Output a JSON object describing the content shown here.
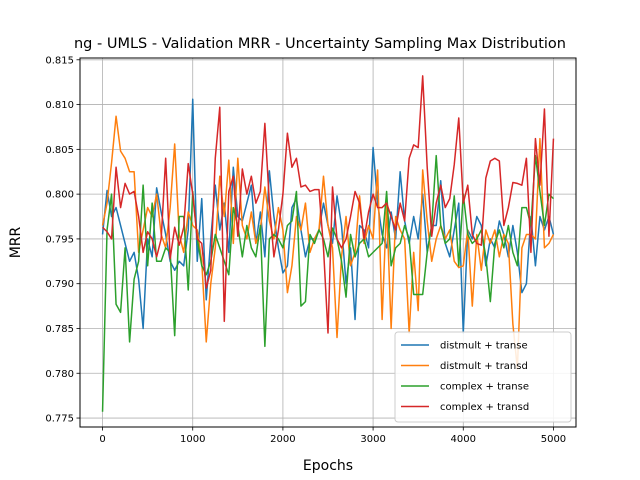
{
  "chart_data": {
    "type": "line",
    "title": "ng - UMLS - Validation MRR - Uncertainty Sampling Max Distribution",
    "xlabel": "Epochs",
    "ylabel": "MRR",
    "xlim": [
      -250,
      5250
    ],
    "ylim": [
      0.774,
      0.8152
    ],
    "xticks": [
      0,
      1000,
      2000,
      3000,
      4000,
      5000
    ],
    "xtick_labels": [
      "0",
      "1000",
      "2000",
      "3000",
      "4000",
      "5000"
    ],
    "yticks": [
      0.775,
      0.78,
      0.785,
      0.79,
      0.795,
      0.8,
      0.805,
      0.81,
      0.815
    ],
    "ytick_labels": [
      "0.775",
      "0.780",
      "0.785",
      "0.790",
      "0.795",
      "0.800",
      "0.805",
      "0.810",
      "0.815"
    ],
    "grid": true,
    "legend_position": "lower-right",
    "series": [
      {
        "name": "distmult + transe",
        "color": "#1f77b4",
        "x": [
          0,
          50,
          100,
          150,
          200,
          250,
          300,
          350,
          400,
          450,
          500,
          550,
          600,
          650,
          700,
          750,
          800,
          850,
          900,
          950,
          1000,
          1050,
          1100,
          1150,
          1200,
          1250,
          1300,
          1350,
          1400,
          1450,
          1500,
          1550,
          1600,
          1650,
          1700,
          1750,
          1800,
          1850,
          1900,
          1950,
          2000,
          2050,
          2100,
          2150,
          2200,
          2250,
          2300,
          2350,
          2400,
          2450,
          2500,
          2550,
          2600,
          2650,
          2700,
          2750,
          2800,
          2850,
          2900,
          2950,
          3000,
          3050,
          3100,
          3150,
          3200,
          3250,
          3300,
          3350,
          3400,
          3450,
          3500,
          3550,
          3600,
          3650,
          3700,
          3750,
          3800,
          3850,
          3900,
          3950,
          4000,
          4050,
          4100,
          4150,
          4200,
          4250,
          4300,
          4350,
          4400,
          4450,
          4500,
          4550,
          4600,
          4650,
          4700,
          4750,
          4800,
          4850,
          4900,
          4950,
          5000
        ],
        "y": [
          0.7955,
          0.8004,
          0.7975,
          0.7985,
          0.7965,
          0.7945,
          0.7925,
          0.7935,
          0.7905,
          0.785,
          0.795,
          0.793,
          0.8007,
          0.798,
          0.7955,
          0.7925,
          0.7915,
          0.7925,
          0.792,
          0.796,
          0.8106,
          0.7925,
          0.7995,
          0.7882,
          0.795,
          0.801,
          0.796,
          0.799,
          0.7935,
          0.803,
          0.7975,
          0.797,
          0.799,
          0.801,
          0.7945,
          0.798,
          0.793,
          0.8026,
          0.7975,
          0.794,
          0.7912,
          0.792,
          0.7985,
          0.7995,
          0.796,
          0.793,
          0.795,
          0.795,
          0.796,
          0.799,
          0.7965,
          0.7945,
          0.7998,
          0.7965,
          0.79,
          0.794,
          0.786,
          0.7965,
          0.796,
          0.794,
          0.8052,
          0.799,
          0.7955,
          0.794,
          0.798,
          0.795,
          0.8025,
          0.797,
          0.7945,
          0.7975,
          0.795,
          0.8,
          0.7935,
          0.7965,
          0.7965,
          0.8015,
          0.7945,
          0.793,
          0.796,
          0.799,
          0.7845,
          0.796,
          0.795,
          0.7975,
          0.7965,
          0.792,
          0.795,
          0.794,
          0.797,
          0.7955,
          0.793,
          0.7965,
          0.7935,
          0.789,
          0.79,
          0.7975,
          0.792,
          0.7975,
          0.796,
          0.7975,
          0.7955
        ]
      },
      {
        "name": "distmult + transd",
        "color": "#ff7f0e",
        "x": [
          0,
          50,
          100,
          150,
          200,
          250,
          300,
          350,
          400,
          450,
          500,
          550,
          600,
          650,
          700,
          750,
          800,
          850,
          900,
          950,
          1000,
          1050,
          1100,
          1150,
          1200,
          1250,
          1300,
          1350,
          1400,
          1450,
          1500,
          1550,
          1600,
          1650,
          1700,
          1750,
          1800,
          1850,
          1900,
          1950,
          2000,
          2050,
          2100,
          2150,
          2200,
          2250,
          2300,
          2350,
          2400,
          2450,
          2500,
          2550,
          2600,
          2650,
          2700,
          2750,
          2800,
          2850,
          2900,
          2950,
          3000,
          3050,
          3100,
          3150,
          3200,
          3250,
          3300,
          3350,
          3400,
          3450,
          3500,
          3550,
          3600,
          3650,
          3700,
          3750,
          3800,
          3850,
          3900,
          3950,
          4000,
          4050,
          4100,
          4150,
          4200,
          4250,
          4300,
          4350,
          4400,
          4450,
          4500,
          4550,
          4600,
          4650,
          4700,
          4750,
          4800,
          4850,
          4900,
          4950,
          5000
        ],
        "y": [
          0.7965,
          0.799,
          0.8035,
          0.8087,
          0.8048,
          0.804,
          0.8025,
          0.8025,
          0.7935,
          0.796,
          0.7985,
          0.7975,
          0.8,
          0.7955,
          0.794,
          0.7985,
          0.8056,
          0.7955,
          0.7935,
          0.798,
          0.7965,
          0.796,
          0.7925,
          0.7835,
          0.79,
          0.794,
          0.802,
          0.7975,
          0.8038,
          0.7945,
          0.804,
          0.7965,
          0.795,
          0.798,
          0.7945,
          0.796,
          0.8008,
          0.797,
          0.795,
          0.7985,
          0.796,
          0.789,
          0.792,
          0.7975,
          0.796,
          0.799,
          0.7935,
          0.795,
          0.796,
          0.802,
          0.7965,
          0.794,
          0.784,
          0.793,
          0.7975,
          0.792,
          0.7935,
          0.7998,
          0.7945,
          0.7965,
          0.795,
          0.8027,
          0.786,
          0.7988,
          0.785,
          0.7975,
          0.796,
          0.795,
          0.7845,
          0.7935,
          0.787,
          0.8027,
          0.797,
          0.7925,
          0.795,
          0.7965,
          0.795,
          0.796,
          0.7925,
          0.7918,
          0.792,
          0.796,
          0.7875,
          0.7955,
          0.7915,
          0.796,
          0.7945,
          0.796,
          0.793,
          0.7955,
          0.7945,
          0.7855,
          0.7805,
          0.794,
          0.7955,
          0.7955,
          0.795,
          0.8062,
          0.794,
          0.7945,
          0.7955
        ]
      },
      {
        "name": "complex + transe",
        "color": "#2ca02c",
        "x": [
          0,
          50,
          100,
          150,
          200,
          250,
          300,
          350,
          400,
          450,
          500,
          550,
          600,
          650,
          700,
          750,
          800,
          850,
          900,
          950,
          1000,
          1050,
          1100,
          1150,
          1200,
          1250,
          1300,
          1350,
          1400,
          1450,
          1500,
          1550,
          1600,
          1650,
          1700,
          1750,
          1800,
          1850,
          1900,
          1950,
          2000,
          2050,
          2100,
          2150,
          2200,
          2250,
          2300,
          2350,
          2400,
          2450,
          2500,
          2550,
          2600,
          2650,
          2700,
          2750,
          2800,
          2850,
          2900,
          2950,
          3000,
          3050,
          3100,
          3150,
          3200,
          3250,
          3300,
          3350,
          3400,
          3450,
          3500,
          3550,
          3600,
          3650,
          3700,
          3750,
          3800,
          3850,
          3900,
          3950,
          4000,
          4050,
          4100,
          4150,
          4200,
          4250,
          4300,
          4350,
          4400,
          4450,
          4500,
          4550,
          4600,
          4650,
          4700,
          4750,
          4800,
          4850,
          4900,
          4950,
          5000
        ],
        "y": [
          0.7757,
          0.796,
          0.8,
          0.7877,
          0.7868,
          0.794,
          0.7835,
          0.7905,
          0.7925,
          0.801,
          0.792,
          0.799,
          0.7925,
          0.7925,
          0.794,
          0.7935,
          0.7842,
          0.7975,
          0.7975,
          0.7893,
          0.8003,
          0.795,
          0.792,
          0.791,
          0.7925,
          0.7955,
          0.794,
          0.7925,
          0.791,
          0.7985,
          0.7965,
          0.793,
          0.7965,
          0.794,
          0.793,
          0.7965,
          0.783,
          0.795,
          0.7955,
          0.795,
          0.794,
          0.7965,
          0.797,
          0.8003,
          0.7875,
          0.788,
          0.7955,
          0.7945,
          0.796,
          0.795,
          0.793,
          0.7962,
          0.795,
          0.7925,
          0.7885,
          0.7955,
          0.793,
          0.7945,
          0.795,
          0.793,
          0.7935,
          0.794,
          0.7945,
          0.8003,
          0.792,
          0.794,
          0.7945,
          0.7965,
          0.795,
          0.7888,
          0.7888,
          0.7888,
          0.7935,
          0.7965,
          0.8043,
          0.7965,
          0.7945,
          0.795,
          0.7998,
          0.792,
          0.8,
          0.7955,
          0.7945,
          0.795,
          0.796,
          0.793,
          0.788,
          0.7945,
          0.796,
          0.794,
          0.7965,
          0.7935,
          0.792,
          0.7985,
          0.7985,
          0.7965,
          0.8043,
          0.8003,
          0.7965,
          0.8,
          0.7995
        ]
      },
      {
        "name": "complex + transd",
        "color": "#d62728",
        "x": [
          0,
          50,
          100,
          150,
          200,
          250,
          300,
          350,
          400,
          450,
          500,
          550,
          600,
          650,
          700,
          750,
          800,
          850,
          900,
          950,
          1000,
          1050,
          1100,
          1150,
          1200,
          1250,
          1300,
          1350,
          1400,
          1450,
          1500,
          1550,
          1600,
          1650,
          1700,
          1750,
          1800,
          1850,
          1900,
          1950,
          2000,
          2050,
          2100,
          2150,
          2200,
          2250,
          2300,
          2350,
          2400,
          2450,
          2500,
          2550,
          2600,
          2650,
          2700,
          2750,
          2800,
          2850,
          2900,
          2950,
          3000,
          3050,
          3100,
          3150,
          3200,
          3250,
          3300,
          3350,
          3400,
          3450,
          3500,
          3550,
          3600,
          3650,
          3700,
          3750,
          3800,
          3850,
          3900,
          3950,
          4000,
          4050,
          4100,
          4150,
          4200,
          4250,
          4300,
          4350,
          4400,
          4450,
          4500,
          4550,
          4600,
          4650,
          4700,
          4750,
          4800,
          4850,
          4900,
          4950,
          5000
        ],
        "y": [
          0.7963,
          0.7958,
          0.795,
          0.803,
          0.7985,
          0.8012,
          0.8,
          0.8003,
          0.7975,
          0.7935,
          0.7958,
          0.795,
          0.793,
          0.795,
          0.804,
          0.7928,
          0.7963,
          0.7943,
          0.7963,
          0.8034,
          0.8,
          0.795,
          0.7945,
          0.7895,
          0.7915,
          0.804,
          0.8097,
          0.7858,
          0.8003,
          0.802,
          0.7953,
          0.8028,
          0.8,
          0.802,
          0.799,
          0.8003,
          0.8079,
          0.799,
          0.793,
          0.796,
          0.8,
          0.8068,
          0.803,
          0.804,
          0.8008,
          0.801,
          0.8003,
          0.8005,
          0.8005,
          0.794,
          0.7845,
          0.8008,
          0.795,
          0.794,
          0.795,
          0.7975,
          0.8003,
          0.799,
          0.795,
          0.798,
          0.8,
          0.7985,
          0.7985,
          0.799,
          0.7975,
          0.796,
          0.799,
          0.797,
          0.804,
          0.8055,
          0.8052,
          0.8132,
          0.803,
          0.7953,
          0.799,
          0.801,
          0.7985,
          0.7995,
          0.8033,
          0.8085,
          0.799,
          0.801,
          0.7955,
          0.7945,
          0.7943,
          0.8018,
          0.8037,
          0.804,
          0.8037,
          0.7965,
          0.7985,
          0.8013,
          0.8012,
          0.801,
          0.804,
          0.7935,
          0.8062,
          0.801,
          0.8095,
          0.7953,
          0.8062
        ]
      }
    ]
  }
}
